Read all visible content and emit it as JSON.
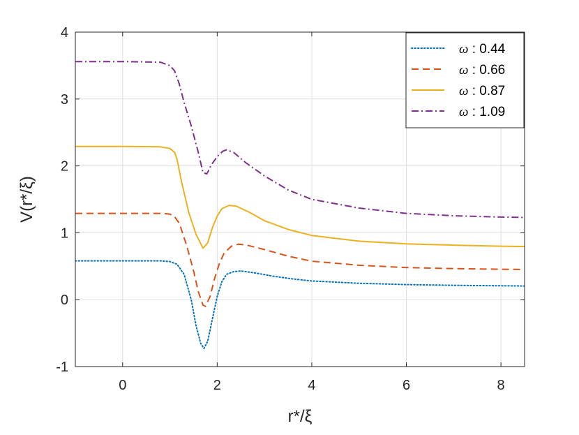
{
  "chart_data": {
    "type": "line",
    "title": "",
    "xlabel": "r*/ξ",
    "ylabel": "V(r*/ξ)",
    "xlim": [
      -1,
      8.5
    ],
    "ylim": [
      -1,
      4
    ],
    "xticks": [
      0,
      2,
      4,
      6,
      8
    ],
    "yticks": [
      -1,
      0,
      1,
      2,
      3,
      4
    ],
    "grid": true,
    "legend_position": "top-right",
    "series": [
      {
        "name": "ω : 0.44",
        "symbol": "ω",
        "value_label": " : 0.44",
        "color": "#0072BD",
        "style": "dotted",
        "points": [
          [
            -1,
            0.58
          ],
          [
            0,
            0.58
          ],
          [
            0.8,
            0.58
          ],
          [
            1.0,
            0.57
          ],
          [
            1.15,
            0.53
          ],
          [
            1.3,
            0.38
          ],
          [
            1.45,
            0.0
          ],
          [
            1.55,
            -0.38
          ],
          [
            1.65,
            -0.65
          ],
          [
            1.72,
            -0.73
          ],
          [
            1.8,
            -0.62
          ],
          [
            1.9,
            -0.28
          ],
          [
            2.0,
            0.05
          ],
          [
            2.1,
            0.27
          ],
          [
            2.2,
            0.38
          ],
          [
            2.35,
            0.42
          ],
          [
            2.5,
            0.43
          ],
          [
            2.8,
            0.4
          ],
          [
            3.2,
            0.35
          ],
          [
            3.6,
            0.31
          ],
          [
            4.0,
            0.28
          ],
          [
            5.0,
            0.245
          ],
          [
            6.0,
            0.225
          ],
          [
            7.0,
            0.215
          ],
          [
            8.0,
            0.208
          ],
          [
            8.5,
            0.205
          ]
        ]
      },
      {
        "name": "ω : 0.66",
        "symbol": "ω",
        "value_label": " : 0.66",
        "color": "#D95319",
        "style": "dashed",
        "points": [
          [
            -1,
            1.29
          ],
          [
            0,
            1.29
          ],
          [
            0.8,
            1.29
          ],
          [
            1.0,
            1.28
          ],
          [
            1.1,
            1.24
          ],
          [
            1.2,
            1.14
          ],
          [
            1.35,
            0.82
          ],
          [
            1.5,
            0.43
          ],
          [
            1.6,
            0.12
          ],
          [
            1.7,
            -0.08
          ],
          [
            1.75,
            -0.1
          ],
          [
            1.85,
            0.05
          ],
          [
            1.95,
            0.33
          ],
          [
            2.05,
            0.55
          ],
          [
            2.15,
            0.7
          ],
          [
            2.3,
            0.8
          ],
          [
            2.45,
            0.83
          ],
          [
            2.6,
            0.82
          ],
          [
            3.0,
            0.75
          ],
          [
            3.5,
            0.65
          ],
          [
            4.0,
            0.575
          ],
          [
            5.0,
            0.515
          ],
          [
            6.0,
            0.48
          ],
          [
            7.0,
            0.465
          ],
          [
            8.0,
            0.455
          ],
          [
            8.5,
            0.452
          ]
        ]
      },
      {
        "name": "ω : 0.87",
        "symbol": "ω",
        "value_label": " : 0.87",
        "color": "#EDB120",
        "style": "solid",
        "points": [
          [
            -1,
            2.29
          ],
          [
            0,
            2.29
          ],
          [
            0.8,
            2.285
          ],
          [
            1.0,
            2.26
          ],
          [
            1.1,
            2.2
          ],
          [
            1.15,
            2.1
          ],
          [
            1.25,
            1.75
          ],
          [
            1.4,
            1.3
          ],
          [
            1.55,
            0.98
          ],
          [
            1.7,
            0.77
          ],
          [
            1.8,
            0.85
          ],
          [
            1.9,
            1.08
          ],
          [
            2.0,
            1.25
          ],
          [
            2.1,
            1.36
          ],
          [
            2.25,
            1.41
          ],
          [
            2.4,
            1.4
          ],
          [
            2.7,
            1.3
          ],
          [
            3.0,
            1.18
          ],
          [
            3.5,
            1.05
          ],
          [
            4.0,
            0.96
          ],
          [
            5.0,
            0.875
          ],
          [
            6.0,
            0.835
          ],
          [
            7.0,
            0.815
          ],
          [
            8.0,
            0.8
          ],
          [
            8.5,
            0.795
          ]
        ]
      },
      {
        "name": "ω : 1.09",
        "symbol": "ω",
        "value_label": " : 1.09",
        "color": "#7E2F8E",
        "style": "dashdot",
        "points": [
          [
            -1,
            3.56
          ],
          [
            0,
            3.56
          ],
          [
            0.8,
            3.55
          ],
          [
            1.0,
            3.5
          ],
          [
            1.1,
            3.42
          ],
          [
            1.2,
            3.22
          ],
          [
            1.3,
            2.95
          ],
          [
            1.45,
            2.6
          ],
          [
            1.6,
            2.2
          ],
          [
            1.7,
            1.9
          ],
          [
            1.78,
            1.88
          ],
          [
            1.88,
            2.02
          ],
          [
            2.0,
            2.14
          ],
          [
            2.12,
            2.22
          ],
          [
            2.2,
            2.24
          ],
          [
            2.35,
            2.2
          ],
          [
            2.6,
            2.05
          ],
          [
            3.0,
            1.85
          ],
          [
            3.5,
            1.64
          ],
          [
            4.0,
            1.5
          ],
          [
            5.0,
            1.37
          ],
          [
            6.0,
            1.29
          ],
          [
            7.0,
            1.255
          ],
          [
            8.0,
            1.235
          ],
          [
            8.5,
            1.23
          ]
        ]
      }
    ]
  }
}
